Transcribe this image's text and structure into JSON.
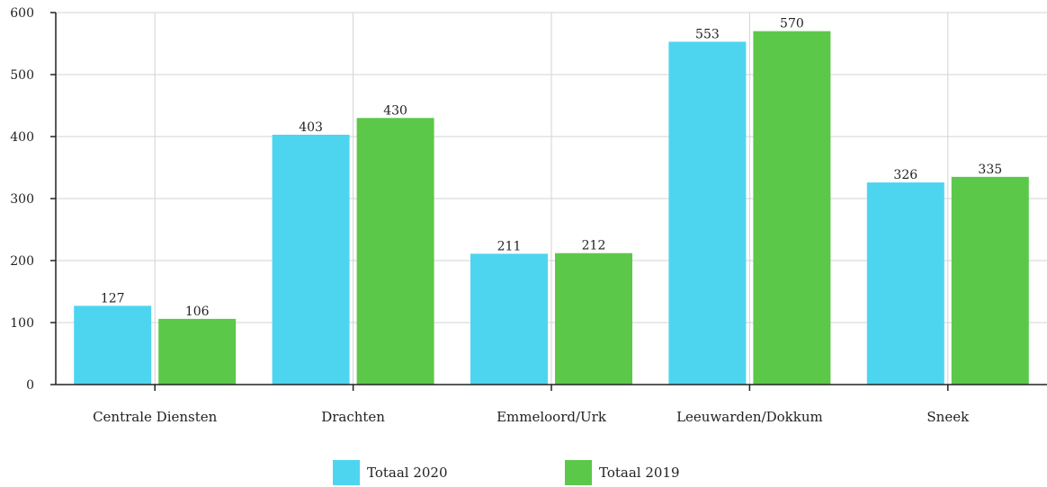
{
  "chart_data": {
    "type": "bar",
    "categories": [
      "Centrale Diensten",
      "Drachten",
      "Emmeloord/Urk",
      "Leeuwarden/Dokkum",
      "Sneek"
    ],
    "series": [
      {
        "name": "Totaal 2020",
        "color": "#4dd5ef",
        "values": [
          127,
          403,
          211,
          553,
          326
        ]
      },
      {
        "name": "Totaal 2019",
        "color": "#5cc84a",
        "values": [
          106,
          430,
          212,
          570,
          335
        ]
      }
    ],
    "ylim": [
      0,
      600
    ],
    "yticks": [
      "0",
      "100",
      "200",
      "300",
      "400",
      "500",
      "600"
    ],
    "grid": true,
    "legend_position": "bottom"
  }
}
